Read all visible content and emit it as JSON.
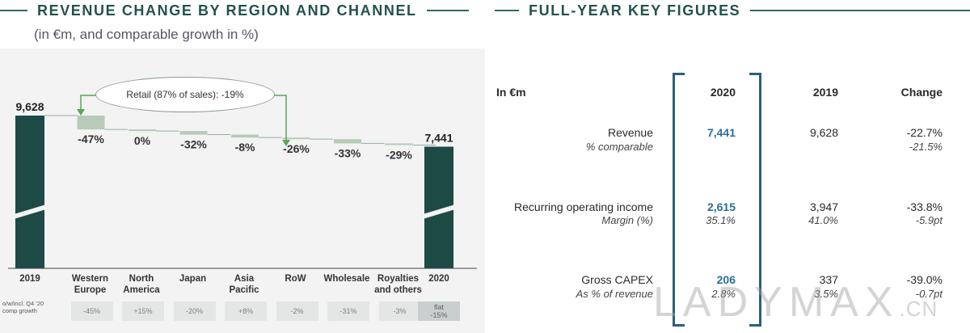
{
  "left_panel": {
    "title": "REVENUE CHANGE BY REGION AND CHANNEL",
    "subtitle": "(in €m, and comparable growth in %)",
    "callout": "Retail (87% of sales): -19%",
    "footnote_label": "o/w/incl. Q4 '20 comp growth",
    "accent_color": "#1d4a44",
    "change_color": "#b7cbb8"
  },
  "chart_data": {
    "type": "bar",
    "subtype": "waterfall",
    "categories": [
      "2019",
      "Western\nEurope",
      "North\nAmerica",
      "Japan",
      "Asia\nPacific",
      "RoW",
      "Wholesale",
      "Royalties\nand others",
      "2020"
    ],
    "start_value": 9628,
    "end_value": 7441,
    "start_label": "9,628",
    "end_label": "7,441",
    "changes_pct_labels": [
      "-47%",
      "0%",
      "-32%",
      "-8%",
      "-26%",
      "-33%",
      "-29%"
    ],
    "change_values_est": [
      -1080,
      -10,
      -280,
      -230,
      -60,
      -330,
      -130
    ],
    "q4_comp_growth": [
      "-45%",
      "+15%",
      "-20%",
      "+8%",
      "-2%",
      "-31%",
      "-3%"
    ],
    "q4_total_growth": "flat\n-15%",
    "axis_break": true
  },
  "right_panel": {
    "title": "FULL-YEAR KEY FIGURES",
    "headers": {
      "label": "In €m",
      "y2020": "2020",
      "y2019": "2019",
      "change": "Change"
    },
    "rows": [
      {
        "label": "Revenue",
        "v2020": "7,441",
        "v2019": "9,628",
        "change": "-22.7%",
        "sub_label": "% comparable",
        "sub2020": "",
        "sub2019": "",
        "sub_change": "-21.5%"
      },
      {
        "label": "Recurring operating income",
        "v2020": "2,615",
        "v2019": "3,947",
        "change": "-33.8%",
        "sub_label": "Margin (%)",
        "sub2020": "35.1%",
        "sub2019": "41.0%",
        "sub_change": "-5.9pt"
      },
      {
        "label": "Gross CAPEX",
        "v2020": "206",
        "v2019": "337",
        "change": "-39.0%",
        "sub_label": "As % of revenue",
        "sub2020": "2.8%",
        "sub2019": "3.5%",
        "sub_change": "-0.7pt"
      }
    ],
    "highlight_color": "#2a6f97"
  },
  "watermark": {
    "main": "LADYMAX",
    "suffix": ".CN"
  }
}
